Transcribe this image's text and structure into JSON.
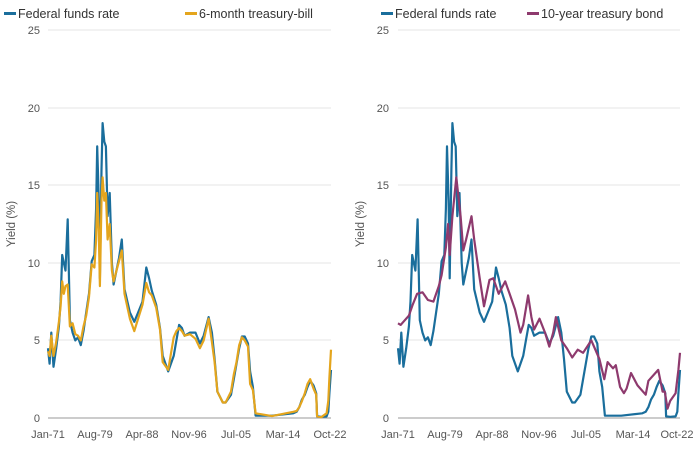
{
  "chart_data": [
    {
      "type": "line",
      "title": "",
      "xlabel": "",
      "ylabel": "Yield (%)",
      "ylim": [
        0,
        25
      ],
      "yticks": [
        "0",
        "5",
        "10",
        "15",
        "20",
        "25"
      ],
      "xticks": [
        "Jan-71",
        "Aug-79",
        "Apr-88",
        "Nov-96",
        "Jul-05",
        "Mar-14",
        "Oct-22"
      ],
      "legend_position": "top-left",
      "series": [
        {
          "name": "Federal funds rate",
          "color": "#1a6e9c",
          "x": [
            1971.0,
            1971.3,
            1971.6,
            1972.0,
            1972.5,
            1973.0,
            1973.3,
            1973.6,
            1973.9,
            1974.2,
            1974.6,
            1975.0,
            1975.5,
            1976.0,
            1976.5,
            1977.0,
            1977.5,
            1978.0,
            1978.5,
            1979.0,
            1979.5,
            1979.8,
            1980.0,
            1980.3,
            1980.5,
            1980.8,
            1981.0,
            1981.3,
            1981.6,
            1981.9,
            1982.3,
            1982.7,
            1983.0,
            1984.0,
            1984.5,
            1985.0,
            1986.0,
            1986.8,
            1987.5,
            1988.3,
            1989.0,
            1989.5,
            1990.0,
            1990.8,
            1991.5,
            1992.0,
            1993.0,
            1994.0,
            1994.5,
            1995.0,
            1995.5,
            1996.0,
            1997.0,
            1998.0,
            1998.8,
            1999.5,
            2000.4,
            2001.0,
            2001.5,
            2002.0,
            2003.0,
            2003.5,
            2004.5,
            2005.0,
            2005.5,
            2006.0,
            2006.5,
            2007.0,
            2007.6,
            2008.0,
            2008.5,
            2009.0,
            2012.0,
            2015.9,
            2016.5,
            2017.0,
            2017.5,
            2018.0,
            2018.5,
            2019.0,
            2019.6,
            2020.1,
            2020.25,
            2021.0,
            2022.0,
            2022.3,
            2022.5,
            2022.8
          ],
          "values": [
            4.5,
            3.5,
            5.5,
            3.3,
            4.5,
            5.9,
            7.5,
            10.5,
            10.0,
            9.5,
            12.8,
            6.3,
            5.5,
            5.0,
            5.2,
            4.7,
            5.6,
            6.8,
            8.0,
            10.1,
            10.5,
            13.5,
            17.5,
            14.0,
            9.0,
            16.0,
            19.0,
            17.8,
            17.5,
            13.0,
            14.5,
            10.0,
            8.6,
            10.3,
            11.5,
            8.3,
            6.8,
            6.2,
            6.8,
            7.5,
            9.7,
            9.0,
            8.2,
            7.3,
            5.8,
            4.0,
            3.0,
            4.0,
            5.0,
            6.0,
            5.8,
            5.3,
            5.5,
            5.5,
            4.8,
            5.3,
            6.5,
            5.5,
            3.8,
            1.7,
            1.0,
            1.0,
            1.5,
            2.5,
            3.5,
            4.5,
            5.25,
            5.25,
            4.8,
            3.0,
            2.0,
            0.15,
            0.15,
            0.3,
            0.4,
            0.7,
            1.2,
            1.5,
            2.0,
            2.4,
            2.1,
            1.6,
            0.1,
            0.08,
            0.1,
            0.4,
            1.6,
            3.1
          ]
        },
        {
          "name": "6-month treasury-bill",
          "color": "#e4a51d",
          "x": [
            1971.0,
            1971.3,
            1971.6,
            1972.0,
            1972.5,
            1973.0,
            1973.3,
            1973.6,
            1973.9,
            1974.2,
            1974.6,
            1975.0,
            1975.5,
            1976.0,
            1976.5,
            1977.0,
            1977.5,
            1978.0,
            1978.5,
            1979.0,
            1979.5,
            1979.8,
            1980.0,
            1980.3,
            1980.5,
            1980.8,
            1981.0,
            1981.3,
            1981.6,
            1981.9,
            1982.3,
            1982.7,
            1983.0,
            1984.0,
            1984.5,
            1985.0,
            1986.0,
            1986.8,
            1987.5,
            1988.3,
            1989.0,
            1989.5,
            1990.0,
            1990.8,
            1991.5,
            1992.0,
            1993.0,
            1994.0,
            1994.5,
            1995.0,
            1995.5,
            1996.0,
            1997.0,
            1998.0,
            1998.8,
            1999.5,
            2000.4,
            2001.0,
            2001.5,
            2002.0,
            2003.0,
            2003.5,
            2004.5,
            2005.0,
            2005.5,
            2006.0,
            2006.5,
            2007.0,
            2007.6,
            2008.0,
            2008.5,
            2009.0,
            2012.0,
            2015.9,
            2016.5,
            2017.0,
            2017.5,
            2018.0,
            2018.5,
            2019.0,
            2019.6,
            2020.1,
            2020.25,
            2021.0,
            2022.0,
            2022.3,
            2022.5,
            2022.8
          ],
          "values": [
            4.3,
            4.0,
            5.3,
            4.0,
            4.9,
            6.2,
            7.2,
            8.8,
            8.0,
            8.5,
            8.6,
            5.9,
            6.1,
            5.4,
            5.3,
            5.0,
            5.9,
            6.6,
            7.8,
            9.9,
            9.7,
            11.5,
            14.5,
            12.0,
            8.5,
            14.0,
            15.5,
            14.0,
            14.5,
            11.5,
            12.5,
            9.5,
            8.8,
            10.1,
            10.8,
            8.0,
            6.4,
            5.6,
            6.4,
            7.3,
            8.7,
            8.1,
            7.9,
            7.1,
            5.7,
            3.6,
            3.1,
            5.2,
            5.6,
            5.8,
            5.6,
            5.3,
            5.4,
            5.1,
            4.5,
            5.0,
            6.4,
            4.9,
            3.6,
            1.7,
            1.0,
            1.0,
            1.7,
            2.8,
            3.6,
            4.7,
            5.2,
            5.0,
            4.6,
            2.2,
            1.8,
            0.3,
            0.12,
            0.4,
            0.45,
            0.7,
            1.1,
            1.6,
            2.2,
            2.5,
            1.9,
            1.5,
            0.1,
            0.05,
            0.3,
            1.1,
            2.6,
            4.4
          ]
        }
      ]
    },
    {
      "type": "line",
      "title": "",
      "xlabel": "",
      "ylabel": "Yield (%)",
      "ylim": [
        0,
        25
      ],
      "yticks": [
        "0",
        "5",
        "10",
        "15",
        "20",
        "25"
      ],
      "xticks": [
        "Jan-71",
        "Aug-79",
        "Apr-88",
        "Nov-96",
        "Jul-05",
        "Mar-14",
        "Oct-22"
      ],
      "legend_position": "top-left",
      "series": [
        {
          "name": "Federal funds rate",
          "color": "#1a6e9c",
          "x": [
            1971.0,
            1971.3,
            1971.6,
            1972.0,
            1972.5,
            1973.0,
            1973.3,
            1973.6,
            1973.9,
            1974.2,
            1974.6,
            1975.0,
            1975.5,
            1976.0,
            1976.5,
            1977.0,
            1977.5,
            1978.0,
            1978.5,
            1979.0,
            1979.5,
            1979.8,
            1980.0,
            1980.3,
            1980.5,
            1980.8,
            1981.0,
            1981.3,
            1981.6,
            1981.9,
            1982.3,
            1982.7,
            1983.0,
            1984.0,
            1984.5,
            1985.0,
            1986.0,
            1986.8,
            1987.5,
            1988.3,
            1989.0,
            1989.5,
            1990.0,
            1990.8,
            1991.5,
            1992.0,
            1993.0,
            1994.0,
            1994.5,
            1995.0,
            1995.5,
            1996.0,
            1997.0,
            1998.0,
            1998.8,
            1999.5,
            2000.4,
            2001.0,
            2001.5,
            2002.0,
            2003.0,
            2003.5,
            2004.5,
            2005.0,
            2005.5,
            2006.0,
            2006.5,
            2007.0,
            2007.6,
            2008.0,
            2008.5,
            2009.0,
            2012.0,
            2015.9,
            2016.5,
            2017.0,
            2017.5,
            2018.0,
            2018.5,
            2019.0,
            2019.6,
            2020.1,
            2020.25,
            2021.0,
            2022.0,
            2022.3,
            2022.5,
            2022.8
          ],
          "values": [
            4.5,
            3.5,
            5.5,
            3.3,
            4.5,
            5.9,
            7.5,
            10.5,
            10.0,
            9.5,
            12.8,
            6.3,
            5.5,
            5.0,
            5.2,
            4.7,
            5.6,
            6.8,
            8.0,
            10.1,
            10.5,
            13.5,
            17.5,
            14.0,
            9.0,
            16.0,
            19.0,
            17.8,
            17.5,
            13.0,
            14.5,
            10.0,
            8.6,
            10.3,
            11.5,
            8.3,
            6.8,
            6.2,
            6.8,
            7.5,
            9.7,
            9.0,
            8.2,
            7.3,
            5.8,
            4.0,
            3.0,
            4.0,
            5.0,
            6.0,
            5.8,
            5.3,
            5.5,
            5.5,
            4.8,
            5.3,
            6.5,
            5.5,
            3.8,
            1.7,
            1.0,
            1.0,
            1.5,
            2.5,
            3.5,
            4.5,
            5.25,
            5.25,
            4.8,
            3.0,
            2.0,
            0.15,
            0.15,
            0.3,
            0.4,
            0.7,
            1.2,
            1.5,
            2.0,
            2.4,
            2.1,
            1.6,
            0.1,
            0.08,
            0.1,
            0.4,
            1.6,
            3.1
          ]
        },
        {
          "name": "10-year treasury bond",
          "color": "#8e3a6e",
          "x": [
            1971.0,
            1971.5,
            1972.0,
            1973.0,
            1973.7,
            1974.5,
            1975.5,
            1976.5,
            1977.5,
            1978.5,
            1979.0,
            1979.8,
            1980.2,
            1980.5,
            1981.0,
            1981.7,
            1982.5,
            1983.0,
            1983.5,
            1984.5,
            1985.0,
            1986.0,
            1986.8,
            1987.8,
            1988.5,
            1989.5,
            1990.7,
            1991.5,
            1992.5,
            1993.5,
            1994.0,
            1994.9,
            1995.5,
            1996.0,
            1997.0,
            1998.0,
            1998.8,
            1999.5,
            2000.0,
            2001.0,
            2002.0,
            2003.0,
            2004.0,
            2005.0,
            2006.5,
            2007.0,
            2008.0,
            2008.9,
            2009.5,
            2010.5,
            2011.0,
            2011.8,
            2012.5,
            2013.0,
            2013.8,
            2015.0,
            2016.5,
            2017.0,
            2018.8,
            2019.6,
            2020.0,
            2020.5,
            2021.0,
            2022.0,
            2022.5,
            2022.8
          ],
          "values": [
            6.1,
            6.0,
            6.2,
            6.6,
            7.3,
            8.0,
            8.1,
            7.6,
            7.5,
            8.5,
            9.2,
            11.0,
            12.5,
            10.5,
            13.0,
            15.5,
            13.0,
            10.8,
            11.5,
            13.0,
            11.5,
            9.0,
            7.2,
            8.9,
            9.0,
            8.0,
            8.8,
            8.0,
            7.0,
            5.5,
            6.0,
            7.9,
            6.5,
            5.7,
            6.4,
            5.5,
            4.6,
            5.5,
            6.5,
            5.0,
            4.5,
            3.9,
            4.4,
            4.2,
            5.0,
            4.6,
            3.8,
            2.5,
            3.6,
            3.2,
            3.4,
            2.0,
            1.6,
            1.9,
            2.9,
            2.1,
            1.5,
            2.4,
            3.1,
            1.7,
            1.7,
            0.6,
            1.1,
            1.6,
            3.1,
            4.2
          ]
        }
      ]
    }
  ]
}
